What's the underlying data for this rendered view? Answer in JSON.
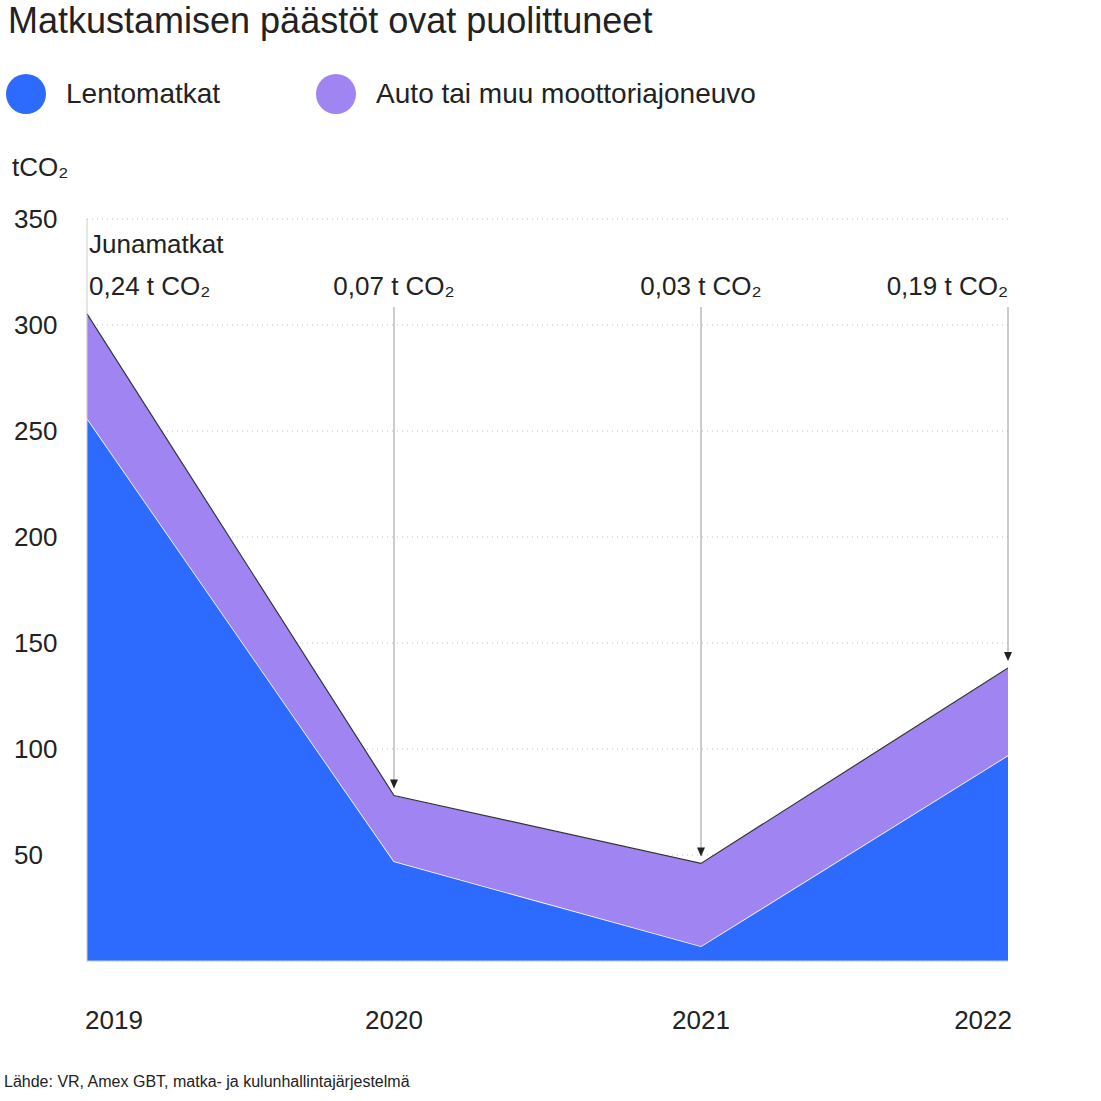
{
  "chart_data": {
    "type": "area",
    "title": "Matkustamisen päästöt ovat puolittuneet",
    "y_label": "tCO₂",
    "source": "Lähde: VR, Amex GBT, matka- ja kulunhallintajärjestelmä",
    "stacked": true,
    "grid": true,
    "legend": "top-left",
    "categories": [
      "2019",
      "2020",
      "2021",
      "2022"
    ],
    "series": [
      {
        "name": "Lentomatkat",
        "type": "area",
        "color": "#2d6bff",
        "values": [
          256,
          47,
          7,
          97
        ]
      },
      {
        "name": "Auto tai muu moottoriajoneuvo",
        "type": "area",
        "color": "#a084f2",
        "values": [
          49,
          31,
          39,
          41
        ]
      },
      {
        "name": "Junamatkat",
        "type": "line",
        "color": "#333333",
        "values": [
          0.24,
          0.07,
          0.03,
          0.19
        ],
        "value_labels": [
          "0,24 t CO₂",
          "0,07 t CO₂",
          "0,03 t CO₂",
          "0,19 t CO₂"
        ],
        "data_labels": true
      }
    ],
    "ylim": [
      0,
      350
    ],
    "yticks": [
      50,
      100,
      150,
      200,
      250,
      300,
      350
    ]
  }
}
